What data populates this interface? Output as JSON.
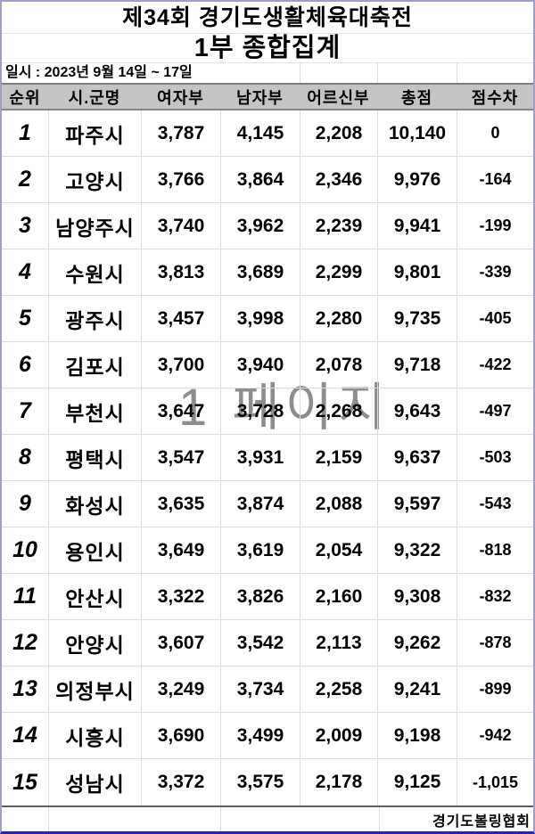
{
  "page": {
    "title": "제34회 경기도생활체육대축전",
    "subtitle": "1부 종합집계",
    "date_line": "일시 : 2023년 9월 14일 ~ 17일",
    "watermark": "1 페이지",
    "footer_text": "경기도볼링협회"
  },
  "colors": {
    "outer_border": "#9f9ecb",
    "bottom_border": "#2323b4",
    "header_bg": "#c4c4c4",
    "grid_line": "#dcdcdc",
    "watermark_color": "#8d8d8d"
  },
  "table": {
    "columns": [
      "순위",
      "시.군명",
      "여자부",
      "남자부",
      "어르신부",
      "총점",
      "점수차"
    ],
    "rows": [
      {
        "rank": "1",
        "city": "파주시",
        "women": "3,787",
        "men": "4,145",
        "seniors": "2,208",
        "total": "10,140",
        "diff": "0"
      },
      {
        "rank": "2",
        "city": "고양시",
        "women": "3,766",
        "men": "3,864",
        "seniors": "2,346",
        "total": "9,976",
        "diff": "-164"
      },
      {
        "rank": "3",
        "city": "남양주시",
        "women": "3,740",
        "men": "3,962",
        "seniors": "2,239",
        "total": "9,941",
        "diff": "-199"
      },
      {
        "rank": "4",
        "city": "수원시",
        "women": "3,813",
        "men": "3,689",
        "seniors": "2,299",
        "total": "9,801",
        "diff": "-339"
      },
      {
        "rank": "5",
        "city": "광주시",
        "women": "3,457",
        "men": "3,998",
        "seniors": "2,280",
        "total": "9,735",
        "diff": "-405"
      },
      {
        "rank": "6",
        "city": "김포시",
        "women": "3,700",
        "men": "3,940",
        "seniors": "2,078",
        "total": "9,718",
        "diff": "-422"
      },
      {
        "rank": "7",
        "city": "부천시",
        "women": "3,647",
        "men": "3,728",
        "seniors": "2,268",
        "total": "9,643",
        "diff": "-497"
      },
      {
        "rank": "8",
        "city": "평택시",
        "women": "3,547",
        "men": "3,931",
        "seniors": "2,159",
        "total": "9,637",
        "diff": "-503"
      },
      {
        "rank": "9",
        "city": "화성시",
        "women": "3,635",
        "men": "3,874",
        "seniors": "2,088",
        "total": "9,597",
        "diff": "-543"
      },
      {
        "rank": "10",
        "city": "용인시",
        "women": "3,649",
        "men": "3,619",
        "seniors": "2,054",
        "total": "9,322",
        "diff": "-818"
      },
      {
        "rank": "11",
        "city": "안산시",
        "women": "3,322",
        "men": "3,826",
        "seniors": "2,160",
        "total": "9,308",
        "diff": "-832"
      },
      {
        "rank": "12",
        "city": "안양시",
        "women": "3,607",
        "men": "3,542",
        "seniors": "2,113",
        "total": "9,262",
        "diff": "-878"
      },
      {
        "rank": "13",
        "city": "의정부시",
        "women": "3,249",
        "men": "3,734",
        "seniors": "2,258",
        "total": "9,241",
        "diff": "-899"
      },
      {
        "rank": "14",
        "city": "시흥시",
        "women": "3,690",
        "men": "3,499",
        "seniors": "2,009",
        "total": "9,198",
        "diff": "-942"
      },
      {
        "rank": "15",
        "city": "성남시",
        "women": "3,372",
        "men": "3,575",
        "seniors": "2,178",
        "total": "9,125",
        "diff": "-1,015"
      }
    ]
  }
}
